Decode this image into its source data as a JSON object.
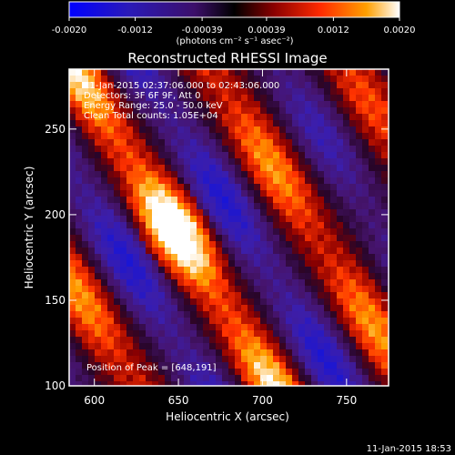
{
  "colorbar": {
    "tick_labels": [
      "-0.0020",
      "-0.0012",
      "-0.00039",
      "0.00039",
      "0.0012",
      "0.0020"
    ],
    "tick_values": [
      -0.002,
      -0.0012,
      -0.00039,
      0.00039,
      0.0012,
      0.002
    ],
    "range": [
      -0.002,
      0.002
    ],
    "unit_label": "(photons cm⁻² s⁻¹ asec⁻²)",
    "colors": [
      "#0000ff",
      "#3a10a8",
      "#4b0f6e",
      "#000000",
      "#7a0000",
      "#ff2a00",
      "#ff9a00",
      "#ffffff"
    ]
  },
  "image": {
    "title": "Reconstructed RHESSI Image",
    "info_lines": [
      "11-Jan-2015 02:37:06.000 to 02:43:06.000",
      "Detectors: 3F 6F 9F, Att 0",
      "Energy Range: 25.0 - 50.0 keV",
      "Clean    Total counts: 1.05E+04"
    ],
    "peak_text": "Position of Peak = [648,191]",
    "x_axis": {
      "label": "Heliocentric X (arcsec)",
      "ticks": [
        "600",
        "650",
        "700",
        "750"
      ],
      "tick_values": [
        600,
        650,
        700,
        750
      ],
      "range": [
        585,
        775
      ]
    },
    "y_axis": {
      "label": "Heliocentric Y (arcsec)",
      "ticks": [
        "100",
        "150",
        "200",
        "250"
      ],
      "tick_values": [
        100,
        150,
        200,
        250
      ],
      "range": [
        100,
        285
      ]
    },
    "peak_position": [
      648,
      191
    ]
  },
  "footer": {
    "timestamp": "11-Jan-2015 18:53"
  }
}
